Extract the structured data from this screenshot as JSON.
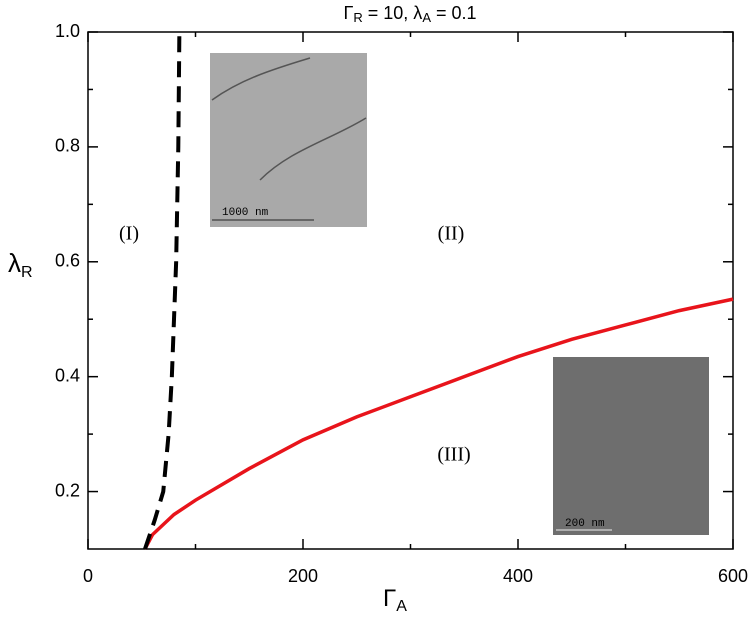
{
  "chart_data": {
    "type": "line",
    "title": [
      "Γ",
      "R",
      " = 10, λ",
      "A",
      " = 0.1"
    ],
    "xlabel": [
      "Γ",
      "A"
    ],
    "ylabel": [
      "λ",
      "R"
    ],
    "xlim": [
      0,
      600
    ],
    "ylim": [
      0.1,
      1
    ],
    "xticks": [
      0,
      200,
      400,
      600
    ],
    "yticks": [
      0.2,
      0.4,
      0.6,
      0.8,
      {
        "value": 1,
        "label": "1.0"
      }
    ],
    "xminorticks": [
      100,
      300,
      500
    ],
    "yminorticks": [
      0.3,
      0.5,
      0.7,
      0.9
    ],
    "series": [
      {
        "color": "#e8141b",
        "dash": false,
        "x": [
          53,
          60,
          80,
          100,
          150,
          200,
          250,
          300,
          350,
          400,
          450,
          500,
          550,
          600
        ],
        "values": [
          0.1,
          0.125,
          0.16,
          0.185,
          0.24,
          0.29,
          0.33,
          0.365,
          0.4,
          0.435,
          0.465,
          0.49,
          0.515,
          0.535
        ]
      },
      {
        "color": "#000000",
        "dash": true,
        "x": [
          53,
          62,
          70,
          75,
          78,
          80,
          82,
          83,
          84,
          85
        ],
        "values": [
          0.1,
          0.15,
          0.2,
          0.3,
          0.4,
          0.5,
          0.6,
          0.7,
          0.8,
          1
        ]
      }
    ],
    "annotations": [
      "(I)",
      "(II)",
      "(III)",
      "1000 nm",
      "200 nm"
    ]
  }
}
